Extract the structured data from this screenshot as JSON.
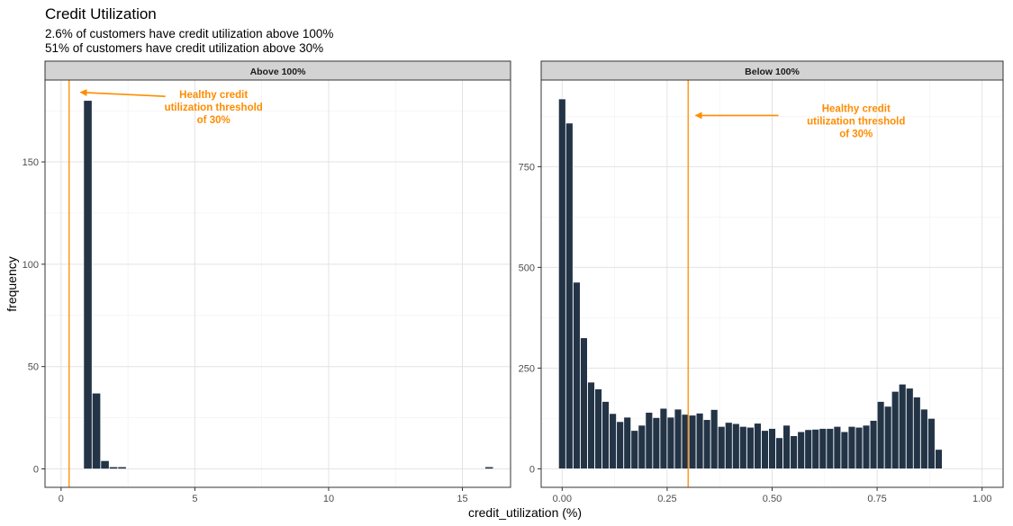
{
  "chart_data": {
    "type": "bar",
    "title": "Credit Utilization",
    "subtitles": [
      "2.6% of customers have credit utilization above 100%",
      "51% of customers have credit utilization above 30%"
    ],
    "xlabel": "credit_utilization (%)",
    "ylabel": "frequency",
    "grid": true,
    "colors": {
      "bar": "#243447",
      "threshold": "#FF8C00",
      "strip": "#D3D3D3"
    },
    "panels": [
      {
        "strip_label": "Above 100%",
        "xlim": [
          -0.6,
          16.8
        ],
        "ylim": [
          -9,
          190
        ],
        "x_ticks": [
          0,
          5,
          10,
          15
        ],
        "x_tick_labels": [
          "0",
          "5",
          "10",
          "15"
        ],
        "y_ticks": [
          0,
          50,
          100,
          150
        ],
        "y_tick_labels": [
          "0",
          "50",
          "100",
          "150"
        ],
        "bin_width": 0.31,
        "bars": [
          {
            "x": 1.0,
            "y": 180
          },
          {
            "x": 1.32,
            "y": 37
          },
          {
            "x": 1.64,
            "y": 4
          },
          {
            "x": 1.96,
            "y": 1
          },
          {
            "x": 2.28,
            "y": 1
          },
          {
            "x": 16.0,
            "y": 1
          }
        ],
        "threshold_x": 0.3,
        "annotation": {
          "lines": [
            "Healthy credit",
            "utilization threshold",
            "of 30%"
          ],
          "text_x": 5.7,
          "text_y_top": 183,
          "arrow_from": [
            3.9,
            182
          ],
          "arrow_to": [
            0.73,
            184
          ]
        }
      },
      {
        "strip_label": "Below 100%",
        "xlim": [
          -0.05,
          1.05
        ],
        "ylim": [
          -46,
          965
        ],
        "x_ticks": [
          0,
          0.25,
          0.5,
          0.75,
          1.0
        ],
        "x_tick_labels": [
          "0.00",
          "0.25",
          "0.50",
          "0.75",
          "1.00"
        ],
        "y_ticks": [
          0,
          250,
          500,
          750
        ],
        "y_tick_labels": [
          "0",
          "250",
          "500",
          "750"
        ],
        "bin_width": 0.0166,
        "bars": [
          {
            "x": 0.0,
            "y": 918
          },
          {
            "x": 0.0172,
            "y": 858
          },
          {
            "x": 0.0345,
            "y": 463
          },
          {
            "x": 0.0517,
            "y": 325
          },
          {
            "x": 0.069,
            "y": 215
          },
          {
            "x": 0.0862,
            "y": 198
          },
          {
            "x": 0.1034,
            "y": 167
          },
          {
            "x": 0.1207,
            "y": 137
          },
          {
            "x": 0.1379,
            "y": 117
          },
          {
            "x": 0.1552,
            "y": 128
          },
          {
            "x": 0.1724,
            "y": 95
          },
          {
            "x": 0.1897,
            "y": 108
          },
          {
            "x": 0.2069,
            "y": 140
          },
          {
            "x": 0.2241,
            "y": 127
          },
          {
            "x": 0.2414,
            "y": 150
          },
          {
            "x": 0.2586,
            "y": 128
          },
          {
            "x": 0.2759,
            "y": 148
          },
          {
            "x": 0.2931,
            "y": 135
          },
          {
            "x": 0.3103,
            "y": 133
          },
          {
            "x": 0.3276,
            "y": 138
          },
          {
            "x": 0.3448,
            "y": 122
          },
          {
            "x": 0.3621,
            "y": 147
          },
          {
            "x": 0.3793,
            "y": 105
          },
          {
            "x": 0.3966,
            "y": 115
          },
          {
            "x": 0.4138,
            "y": 112
          },
          {
            "x": 0.431,
            "y": 105
          },
          {
            "x": 0.4483,
            "y": 103
          },
          {
            "x": 0.4655,
            "y": 113
          },
          {
            "x": 0.4828,
            "y": 95
          },
          {
            "x": 0.5,
            "y": 100
          },
          {
            "x": 0.5172,
            "y": 77
          },
          {
            "x": 0.5345,
            "y": 108
          },
          {
            "x": 0.5517,
            "y": 82
          },
          {
            "x": 0.569,
            "y": 92
          },
          {
            "x": 0.5862,
            "y": 97
          },
          {
            "x": 0.6034,
            "y": 98
          },
          {
            "x": 0.6207,
            "y": 100
          },
          {
            "x": 0.6379,
            "y": 100
          },
          {
            "x": 0.6552,
            "y": 105
          },
          {
            "x": 0.6724,
            "y": 92
          },
          {
            "x": 0.6897,
            "y": 105
          },
          {
            "x": 0.7069,
            "y": 103
          },
          {
            "x": 0.7241,
            "y": 108
          },
          {
            "x": 0.7414,
            "y": 120
          },
          {
            "x": 0.7586,
            "y": 167
          },
          {
            "x": 0.7759,
            "y": 155
          },
          {
            "x": 0.7931,
            "y": 192
          },
          {
            "x": 0.8103,
            "y": 210
          },
          {
            "x": 0.8276,
            "y": 200
          },
          {
            "x": 0.8448,
            "y": 178
          },
          {
            "x": 0.8621,
            "y": 148
          },
          {
            "x": 0.8793,
            "y": 125
          },
          {
            "x": 0.8966,
            "y": 48
          }
        ],
        "threshold_x": 0.3,
        "annotation": {
          "lines": [
            "Healthy credit",
            "utilization threshold",
            "of 30%"
          ],
          "text_x": 0.7,
          "text_y_top": 895,
          "arrow_from": [
            0.515,
            877
          ],
          "arrow_to": [
            0.318,
            877
          ]
        }
      }
    ]
  }
}
